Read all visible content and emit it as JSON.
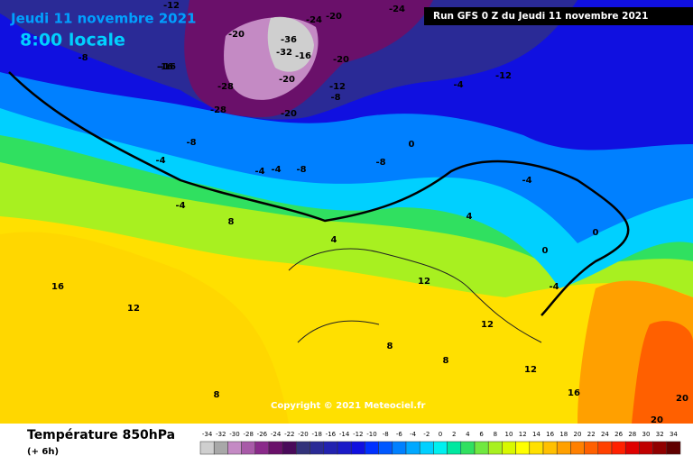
{
  "header": {
    "date": "Jeudi 11 novembre 2021",
    "time": "8:00 locale",
    "run": "Run GFS 0 Z du Jeudi 11 novembre 2021"
  },
  "copyright": "Copyright © 2021 Meteociel.fr",
  "footer": {
    "title": "Température 850hPa",
    "step": "(+ 6h)"
  },
  "scale": {
    "labels": [
      -34,
      -32,
      -30,
      -28,
      -26,
      -24,
      -22,
      -20,
      -18,
      -16,
      -14,
      -12,
      -10,
      -8,
      -6,
      -4,
      -2,
      0,
      2,
      4,
      6,
      8,
      10,
      12,
      14,
      16,
      18,
      20,
      22,
      24,
      26,
      28,
      30,
      32,
      34
    ],
    "colors": [
      "#cfcfcf",
      "#a8a8a8",
      "#c48ac4",
      "#a85aa8",
      "#8a2a8a",
      "#6a106a",
      "#4a0a5a",
      "#32327a",
      "#2a2a96",
      "#2222b0",
      "#1a1ac8",
      "#1010e0",
      "#0030ff",
      "#0058ff",
      "#0080ff",
      "#00a8ff",
      "#00d0ff",
      "#00f0f0",
      "#00e8a0",
      "#30e060",
      "#70e840",
      "#a8f020",
      "#d8f800",
      "#ffff00",
      "#ffe000",
      "#ffc000",
      "#ffa000",
      "#ff8000",
      "#ff6000",
      "#ff4000",
      "#ff2000",
      "#e00000",
      "#c00000",
      "#900000",
      "#600000"
    ]
  },
  "contour_labels": [
    -12,
    -16,
    -20,
    -24,
    -20,
    -24,
    -8,
    -16,
    -20,
    -28,
    -32,
    -36,
    -16,
    -20,
    -12,
    -8,
    -28,
    -20,
    -12,
    -8,
    -4,
    -8,
    -4,
    -4,
    -8,
    -4,
    0,
    -4,
    0,
    4,
    8,
    12,
    16,
    12,
    8,
    12,
    8,
    12,
    16,
    20,
    20,
    0,
    -4,
    4,
    -4,
    8
  ]
}
